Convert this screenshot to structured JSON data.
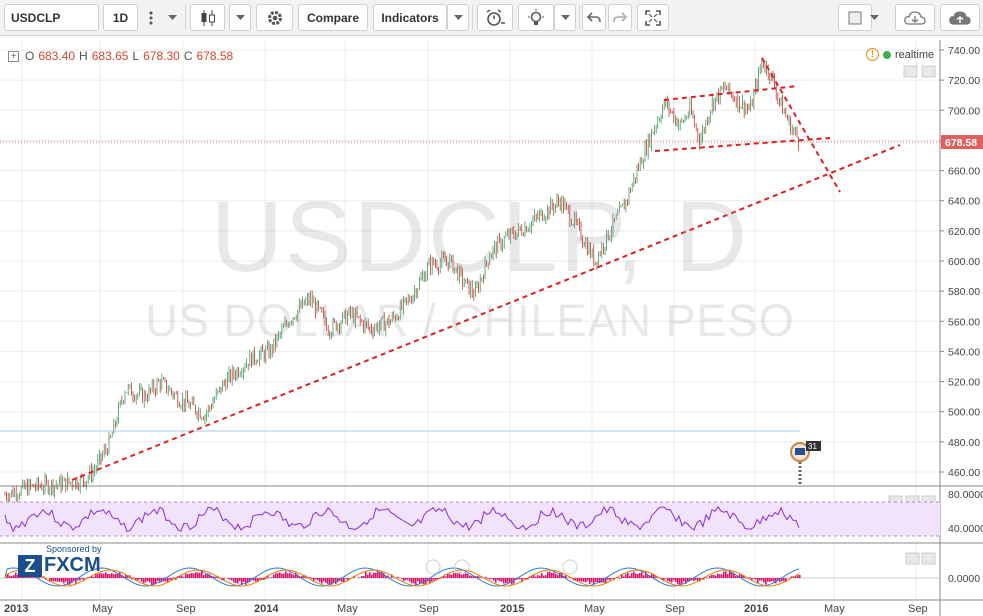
{
  "toolbar": {
    "symbol": "USDCLP",
    "interval": "1D",
    "compare_label": "Compare",
    "indicators_label": "Indicators"
  },
  "legend": {
    "o_label": "O",
    "o_value": "683.40",
    "h_label": "H",
    "h_value": "683.65",
    "l_label": "L",
    "l_value": "678.30",
    "c_label": "C",
    "c_value": "678.58",
    "realtime_label": "realtime"
  },
  "watermark": {
    "line1": "USDCLP, D",
    "line2": "US DOLLAR / CHILEAN PESO"
  },
  "sponsor": {
    "label": "Sponsored by",
    "brand": "FXCM"
  },
  "price_axis": {
    "ticks": [
      "740.00",
      "720.00",
      "700.00",
      "680.00",
      "660.00",
      "640.00",
      "620.00",
      "600.00",
      "580.00",
      "560.00",
      "540.00",
      "520.00",
      "500.00",
      "480.00",
      "460.00"
    ],
    "last_price": "678.58"
  },
  "rsi_axis": {
    "ticks": [
      "80.0000",
      "40.0000"
    ]
  },
  "macd_axis": {
    "ticks": [
      "0.0000"
    ]
  },
  "time_axis": {
    "labels": [
      "2013",
      "May",
      "Sep",
      "2014",
      "May",
      "Sep",
      "2015",
      "May",
      "Sep",
      "2016",
      "May",
      "Sep"
    ]
  },
  "event_badge": "31",
  "colors": {
    "candle_up": "#3c9a5f",
    "candle_down": "#c0392b",
    "trendline": "#e02020",
    "rsi_line": "#8a2be2",
    "rsi_band": "#f1e3fb",
    "macd_hist": "#e0106a",
    "last_price_bg": "#e06060"
  }
}
